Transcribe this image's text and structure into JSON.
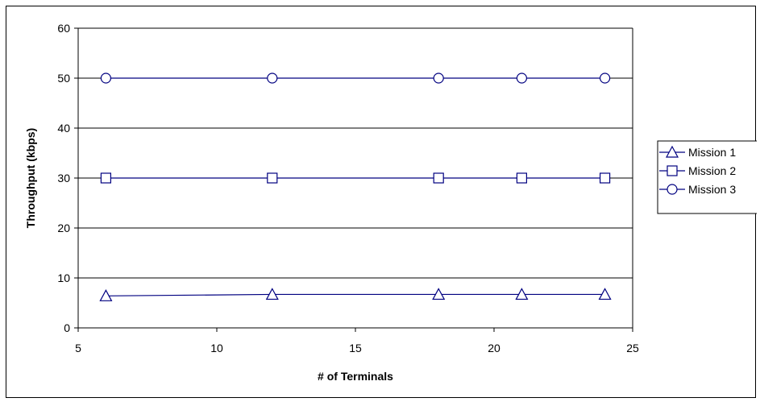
{
  "chart_data": {
    "type": "line",
    "title": "",
    "xlabel": "# of Terminals",
    "ylabel": "Throughput (kbps)",
    "xlim": [
      5,
      25
    ],
    "ylim": [
      0,
      60
    ],
    "xticks": [
      5,
      10,
      15,
      20,
      25
    ],
    "yticks": [
      0,
      10,
      20,
      30,
      40,
      50,
      60
    ],
    "grid": "horizontal",
    "legend": "right",
    "line_color": "#000080",
    "x": [
      6,
      12,
      18,
      21,
      24
    ],
    "series": [
      {
        "name": "Mission 1",
        "marker": "triangle",
        "values": [
          6.4,
          6.7,
          6.7,
          6.7,
          6.7
        ]
      },
      {
        "name": "Mission 2",
        "marker": "square",
        "values": [
          30,
          30,
          30,
          30,
          30
        ]
      },
      {
        "name": "Mission 3",
        "marker": "circle",
        "values": [
          50,
          50,
          50,
          50,
          50
        ]
      }
    ]
  }
}
